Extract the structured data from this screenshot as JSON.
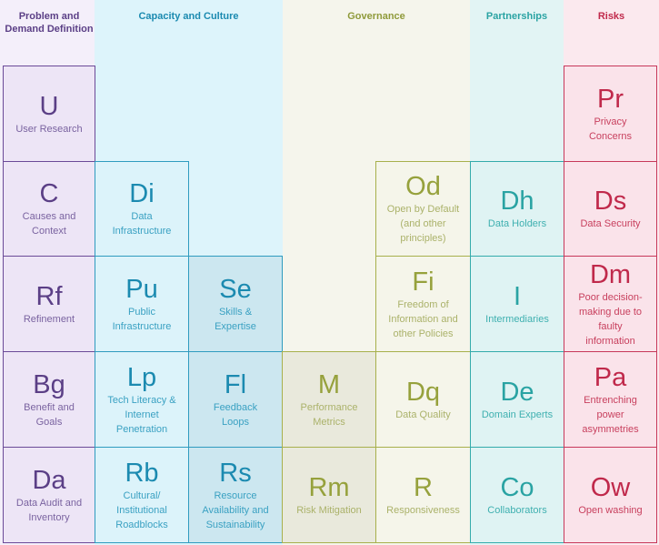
{
  "columns": {
    "problem": "Problem and Demand Definition",
    "capacity": "Capacity and Culture",
    "governance": "Governance",
    "partnerships": "Partnerships",
    "risks": "Risks"
  },
  "elements": {
    "u": {
      "symbol": "U",
      "name": "User Research"
    },
    "c": {
      "symbol": "C",
      "name": "Causes and Context"
    },
    "rf": {
      "symbol": "Rf",
      "name": "Refinement"
    },
    "bg": {
      "symbol": "Bg",
      "name": "Benefit and Goals"
    },
    "da": {
      "symbol": "Da",
      "name": "Data Audit and Inventory"
    },
    "di": {
      "symbol": "Di",
      "name": "Data Infrastructure"
    },
    "pu": {
      "symbol": "Pu",
      "name": "Public Infrastructure"
    },
    "lp": {
      "symbol": "Lp",
      "name": "Tech Literacy & Internet Penetration"
    },
    "rb": {
      "symbol": "Rb",
      "name": "Cultural/ Institutional Roadblocks"
    },
    "se": {
      "symbol": "Se",
      "name": "Skills & Expertise"
    },
    "fl": {
      "symbol": "Fl",
      "name": "Feedback Loops"
    },
    "rs": {
      "symbol": "Rs",
      "name": "Resource Availability and Sustainability"
    },
    "m": {
      "symbol": "M",
      "name": "Performance Metrics"
    },
    "rm": {
      "symbol": "Rm",
      "name": "Risk Mitigation"
    },
    "od": {
      "symbol": "Od",
      "name": "Open by Default (and other principles)"
    },
    "fi": {
      "symbol": "Fi",
      "name": "Freedom of Information and other Policies"
    },
    "dq": {
      "symbol": "Dq",
      "name": "Data Quality"
    },
    "r": {
      "symbol": "R",
      "name": "Responsiveness"
    },
    "dh": {
      "symbol": "Dh",
      "name": "Data Holders"
    },
    "i": {
      "symbol": "I",
      "name": "Intermediaries"
    },
    "de": {
      "symbol": "De",
      "name": "Domain Experts"
    },
    "co": {
      "symbol": "Co",
      "name": "Collaborators"
    },
    "pr": {
      "symbol": "Pr",
      "name": "Privacy Concerns"
    },
    "ds": {
      "symbol": "Ds",
      "name": "Data Security"
    },
    "dm": {
      "symbol": "Dm",
      "name": "Poor decision-making due to faulty information"
    },
    "pa": {
      "symbol": "Pa",
      "name": "Entrenching power asymmetries"
    },
    "ow": {
      "symbol": "Ow",
      "name": "Open washing"
    }
  },
  "colors": {
    "problem": "#5b3f86",
    "capacity": "#1b8ab0",
    "governance": "#96a13c",
    "partnerships": "#2aa3a3",
    "risks": "#c0294b"
  }
}
